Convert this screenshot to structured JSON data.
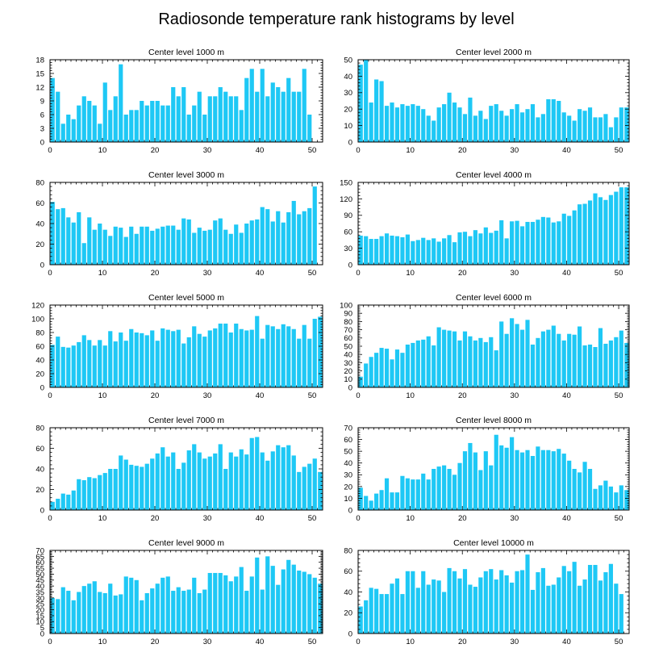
{
  "figure": {
    "title": "Radiosonde temperature rank histograms by level",
    "bar_color": "#1ec8f5"
  },
  "chart_data": [
    {
      "type": "bar",
      "title": "Center level 1000 m",
      "xlim": [
        0,
        52
      ],
      "ylim": [
        0,
        18
      ],
      "yticks": [
        0,
        3,
        6,
        9,
        12,
        15,
        18
      ],
      "xticks": [
        0,
        10,
        20,
        30,
        40,
        50
      ],
      "values": [
        14,
        11,
        4,
        6,
        5,
        8,
        10,
        9,
        8,
        4,
        13,
        7,
        10,
        17,
        6,
        7,
        7,
        9,
        8,
        9,
        9,
        8,
        8,
        12,
        10,
        12,
        6,
        8,
        11,
        6,
        10,
        10,
        12,
        11,
        10,
        10,
        7,
        14,
        16,
        11,
        16,
        10,
        13,
        12,
        11,
        14,
        11,
        11,
        16,
        6
      ]
    },
    {
      "type": "bar",
      "title": "Center level 2000 m",
      "xlim": [
        0,
        52
      ],
      "ylim": [
        0,
        50
      ],
      "yticks": [
        0,
        10,
        20,
        30,
        40,
        50
      ],
      "xticks": [
        0,
        10,
        20,
        30,
        40,
        50
      ],
      "values": [
        47,
        50,
        24,
        38,
        37,
        22,
        24,
        21,
        23,
        22,
        23,
        22,
        20,
        16,
        13,
        21,
        23,
        30,
        24,
        21,
        17,
        27,
        16,
        19,
        14,
        22,
        23,
        19,
        16,
        20,
        23,
        18,
        20,
        23,
        15,
        17,
        26,
        26,
        25,
        18,
        16,
        13,
        20,
        19,
        21,
        15,
        15,
        17,
        9,
        15,
        21,
        21
      ]
    },
    {
      "type": "bar",
      "title": "Center level 3000 m",
      "xlim": [
        0,
        52
      ],
      "ylim": [
        0,
        80
      ],
      "yticks": [
        0,
        20,
        40,
        60,
        80
      ],
      "xticks": [
        0,
        10,
        20,
        30,
        40,
        50
      ],
      "values": [
        61,
        54,
        55,
        46,
        41,
        51,
        21,
        46,
        34,
        40,
        34,
        28,
        37,
        36,
        27,
        37,
        30,
        37,
        37,
        33,
        35,
        37,
        38,
        38,
        34,
        45,
        44,
        31,
        36,
        33,
        34,
        43,
        45,
        34,
        30,
        39,
        31,
        40,
        43,
        44,
        56,
        54,
        42,
        52,
        41,
        51,
        62,
        49,
        52,
        55,
        76
      ]
    },
    {
      "type": "bar",
      "title": "Center level 4000 m",
      "xlim": [
        0,
        52
      ],
      "ylim": [
        0,
        150
      ],
      "yticks": [
        0,
        30,
        60,
        90,
        120,
        150
      ],
      "xticks": [
        0,
        10,
        20,
        30,
        40,
        50
      ],
      "values": [
        53,
        52,
        47,
        47,
        52,
        57,
        53,
        52,
        50,
        55,
        43,
        45,
        49,
        45,
        48,
        42,
        48,
        54,
        41,
        59,
        60,
        52,
        63,
        57,
        68,
        58,
        62,
        81,
        48,
        79,
        80,
        70,
        78,
        78,
        82,
        87,
        86,
        77,
        79,
        93,
        89,
        99,
        110,
        111,
        117,
        130,
        123,
        118,
        127,
        133,
        141,
        141
      ]
    },
    {
      "type": "bar",
      "title": "Center level 5000 m",
      "xlim": [
        0,
        52
      ],
      "ylim": [
        0,
        120
      ],
      "yticks": [
        0,
        20,
        40,
        60,
        80,
        100,
        120
      ],
      "xticks": [
        0,
        10,
        20,
        30,
        40,
        50
      ],
      "values": [
        62,
        74,
        59,
        58,
        61,
        66,
        76,
        69,
        61,
        69,
        61,
        82,
        67,
        80,
        68,
        85,
        80,
        79,
        76,
        83,
        68,
        86,
        84,
        82,
        84,
        64,
        73,
        89,
        78,
        74,
        83,
        86,
        93,
        93,
        80,
        93,
        85,
        83,
        84,
        104,
        71,
        91,
        89,
        85,
        92,
        89,
        85,
        71,
        91,
        71,
        100,
        103
      ]
    },
    {
      "type": "bar",
      "title": "Center level 6000 m",
      "xlim": [
        0,
        52
      ],
      "ylim": [
        0,
        100
      ],
      "yticks": [
        0,
        10,
        20,
        30,
        40,
        50,
        60,
        70,
        80,
        90,
        100
      ],
      "xticks": [
        0,
        10,
        20,
        30,
        40,
        50
      ],
      "values": [
        13,
        29,
        37,
        42,
        48,
        47,
        34,
        46,
        42,
        52,
        54,
        57,
        58,
        62,
        51,
        73,
        70,
        69,
        68,
        57,
        68,
        62,
        57,
        60,
        55,
        61,
        45,
        80,
        65,
        84,
        77,
        70,
        82,
        52,
        60,
        68,
        70,
        75,
        65,
        57,
        65,
        64,
        74,
        51,
        52,
        49,
        72,
        53,
        57,
        61,
        69,
        54
      ]
    },
    {
      "type": "bar",
      "title": "Center level 7000 m",
      "xlim": [
        0,
        52
      ],
      "ylim": [
        0,
        80
      ],
      "yticks": [
        0,
        20,
        40,
        60,
        80
      ],
      "xticks": [
        0,
        10,
        20,
        30,
        40,
        50
      ],
      "values": [
        8,
        11,
        16,
        15,
        19,
        30,
        29,
        32,
        31,
        34,
        36,
        40,
        40,
        53,
        49,
        44,
        43,
        42,
        45,
        50,
        55,
        61,
        52,
        56,
        40,
        46,
        58,
        64,
        56,
        50,
        52,
        55,
        64,
        40,
        56,
        52,
        59,
        54,
        70,
        71,
        56,
        48,
        57,
        63,
        61,
        63,
        53,
        37,
        42,
        45,
        50,
        37
      ]
    },
    {
      "type": "bar",
      "title": "Center level 8000 m",
      "xlim": [
        0,
        52
      ],
      "ylim": [
        0,
        70
      ],
      "yticks": [
        0,
        10,
        20,
        30,
        40,
        50,
        60,
        70
      ],
      "xticks": [
        0,
        10,
        20,
        30,
        40,
        50
      ],
      "values": [
        19,
        12,
        8,
        14,
        17,
        27,
        15,
        15,
        29,
        27,
        26,
        26,
        31,
        26,
        35,
        37,
        38,
        35,
        30,
        40,
        50,
        57,
        49,
        34,
        50,
        38,
        64,
        55,
        53,
        62,
        51,
        49,
        51,
        46,
        54,
        51,
        51,
        50,
        52,
        48,
        42,
        35,
        32,
        41,
        35,
        18,
        21,
        25,
        20,
        15,
        21,
        17
      ]
    },
    {
      "type": "bar",
      "title": "Center level 9000 m",
      "xlim": [
        0,
        52
      ],
      "ylim": [
        0,
        70
      ],
      "yticks": [
        0,
        5,
        10,
        15,
        20,
        25,
        30,
        35,
        40,
        45,
        50,
        55,
        60,
        65,
        70
      ],
      "xticks": [
        0,
        10,
        20,
        30,
        40,
        50
      ],
      "values": [
        30,
        29,
        39,
        36,
        28,
        35,
        40,
        42,
        44,
        35,
        34,
        42,
        32,
        33,
        48,
        47,
        45,
        28,
        34,
        38,
        42,
        47,
        48,
        36,
        39,
        36,
        37,
        47,
        34,
        37,
        51,
        51,
        51,
        49,
        44,
        48,
        56,
        36,
        48,
        64,
        37,
        65,
        57,
        41,
        54,
        62,
        58,
        53,
        52,
        50,
        47,
        42
      ]
    },
    {
      "type": "bar",
      "title": "Center level 10000 m",
      "xlim": [
        0,
        52
      ],
      "ylim": [
        0,
        80
      ],
      "yticks": [
        0,
        20,
        40,
        60,
        80
      ],
      "xticks": [
        0,
        10,
        20,
        30,
        40,
        50
      ],
      "values": [
        26,
        32,
        44,
        43,
        38,
        38,
        48,
        53,
        38,
        60,
        60,
        44,
        60,
        47,
        52,
        51,
        40,
        63,
        60,
        53,
        62,
        47,
        45,
        54,
        60,
        62,
        52,
        61,
        56,
        49,
        60,
        61,
        76,
        42,
        59,
        63,
        46,
        47,
        54,
        65,
        60,
        69,
        46,
        52,
        66,
        66,
        51,
        59,
        67,
        48,
        38
      ]
    }
  ]
}
